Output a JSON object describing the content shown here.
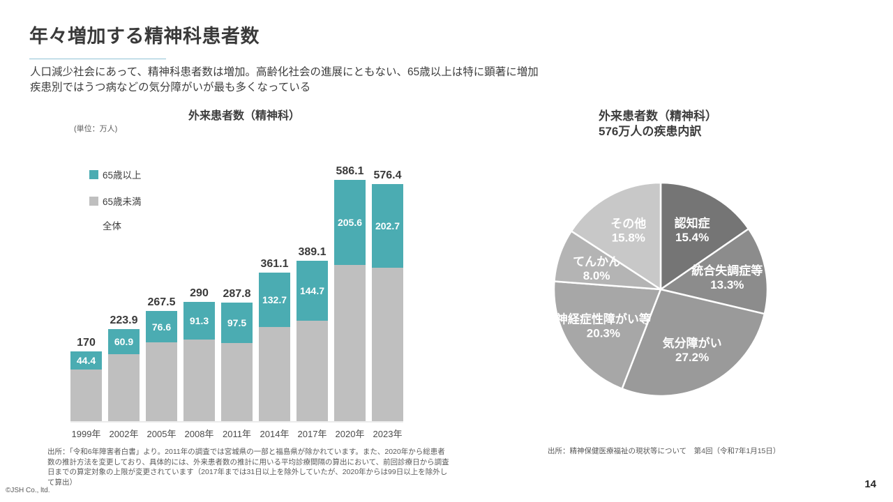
{
  "page": {
    "title": "年々増加する精神科患者数",
    "subtitle_line1": "人口減少社会にあって、精神科患者数は増加。高齢化社会の進展にともない、65歳以上は特に顕著に増加",
    "subtitle_line2": "疾患別ではうつ病などの気分障がいが最も多くなっている",
    "copyright": "©JSH Co., ltd.",
    "page_number": "14",
    "accent_underline_color": "#8FC2D4"
  },
  "chart_data": [
    {
      "type": "bar",
      "stacked": true,
      "title": "外来患者数（精神科）",
      "unit_label": "(単位：万人)",
      "categories": [
        "1999年",
        "2002年",
        "2005年",
        "2008年",
        "2011年",
        "2014年",
        "2017年",
        "2020年",
        "2023年"
      ],
      "series": [
        {
          "name": "65歳以上",
          "color": "#4BACB2",
          "values": [
            44.4,
            60.9,
            76.6,
            91.3,
            97.5,
            132.7,
            144.7,
            205.6,
            202.7
          ]
        },
        {
          "name": "65歳未満",
          "color": "#BFBFBF",
          "values": [
            125.6,
            163.0,
            190.9,
            198.7,
            190.3,
            228.4,
            244.4,
            380.5,
            373.7
          ]
        }
      ],
      "totals": [
        170,
        223.9,
        267.5,
        290,
        287.8,
        361.1,
        389.1,
        586.1,
        576.4
      ],
      "totals_label": "全体",
      "value_labels_on": "65歳以上",
      "legend_position": "left",
      "grid": false,
      "footnote": "出所：「令和6年障害者白書」より。2011年の調査では宮城県の一部と福島県が除かれています。また、2020年から総患者数の推計方法を変更しており、具体的には、外来患者数の推計に用いる平均診療間隔の算出において、前回診療日から調査日までの算定対象の上限が変更されています（2017年までは31日以上を除外していたが、2020年からは99日以上を除外して算出）"
    },
    {
      "type": "pie",
      "title_line1": "外来患者数（精神科）",
      "title_line2": "576万人の疾患内訳",
      "start_angle": "top",
      "direction": "clockwise",
      "slices": [
        {
          "label": "認知症",
          "pct": 15.4,
          "color": "#757575"
        },
        {
          "label": "統合失調症等",
          "pct": 13.3,
          "color": "#8C8C8C"
        },
        {
          "label": "気分障がい",
          "pct": 27.2,
          "color": "#9A9A9A"
        },
        {
          "label": "神経症性障がい等",
          "pct": 20.3,
          "color": "#A7A7A7"
        },
        {
          "label": "てんかん",
          "pct": 8.0,
          "color": "#B4B4B4"
        },
        {
          "label": "その他",
          "pct": 15.8,
          "color": "#C8C8C8"
        }
      ],
      "footnote": "出所：精神保健医療福祉の現状等について　第4回（令和7年1月15日）"
    }
  ]
}
